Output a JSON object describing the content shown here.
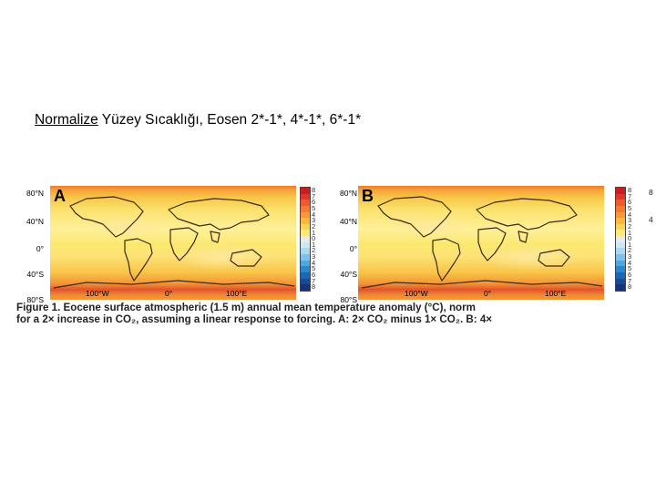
{
  "slide": {
    "title_underlined": "Normalize",
    "title_rest": " Yüzey Sıcaklığı, Eosen 2*-1*, 4*-1*, 6*-1*"
  },
  "figure": {
    "panels": [
      {
        "letter": "A"
      },
      {
        "letter": "B"
      }
    ],
    "lat_labels": [
      "80°N",
      "40°N",
      "0°",
      "40°S",
      "80°S"
    ],
    "lon_labels": [
      "100°W",
      "0°",
      "100°E"
    ],
    "colorbar": {
      "labels": [
        "8",
        "7",
        "6",
        "5",
        "4",
        "3",
        "2",
        "1",
        "0",
        "1",
        "2",
        "3",
        "4",
        "5",
        "6",
        "7",
        "8"
      ],
      "colors": [
        "#c81e1e",
        "#e0352a",
        "#ef5a2c",
        "#f47a2f",
        "#f79a36",
        "#f9b83f",
        "#fbd352",
        "#fde878",
        "#e9e9e9",
        "#cfe7f2",
        "#a9d8ef",
        "#7cc3e9",
        "#4ea7dd",
        "#2b88cc",
        "#1c67b3",
        "#1a4a94",
        "#173478"
      ]
    },
    "right_edge_labels": [
      "8",
      "4"
    ],
    "caption_line1": "Figure 1. Eocene surface atmospheric (1.5 m) annual mean temperature anomaly (°C), norm",
    "caption_line2": "for a 2× increase in CO₂, assuming a linear response to forcing. A: 2× CO₂ minus 1× CO₂. B: 4×"
  }
}
